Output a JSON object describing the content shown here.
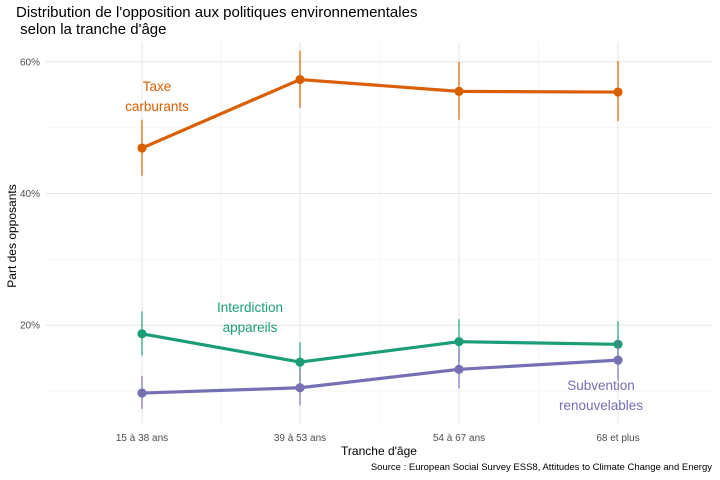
{
  "chart_data": {
    "type": "line",
    "title": "Distribution de l'opposition aux politiques environnementales\n selon la tranche d'âge",
    "xlabel": "Tranche d'âge",
    "ylabel": "Part des opposants",
    "caption": "Source : European Social Survey ESS8, Attitudes to Climate Change and Energy",
    "categories": [
      "15 à 38 ans",
      "39 à 53 ans",
      "54 à 67 ans",
      "68 et plus"
    ],
    "y_ticks": [
      0.2,
      0.4,
      0.6
    ],
    "y_tick_labels": [
      "20%",
      "40%",
      "60%"
    ],
    "ylim": [
      0.05,
      0.63
    ],
    "grid": true,
    "series": [
      {
        "name": "Taxe carburants",
        "label_lines": [
          "Taxe",
          "carburants"
        ],
        "color": "#D95F02",
        "values": [
          0.469,
          0.573,
          0.555,
          0.554
        ],
        "ci_low": [
          0.427,
          0.53,
          0.512,
          0.51
        ],
        "ci_high": [
          0.512,
          0.617,
          0.6,
          0.601
        ]
      },
      {
        "name": "Interdiction appareils",
        "label_lines": [
          "Interdiction",
          "appareils"
        ],
        "color": "#1B9E77",
        "values": [
          0.187,
          0.144,
          0.175,
          0.171
        ],
        "ci_low": [
          0.154,
          0.115,
          0.145,
          0.14
        ],
        "ci_high": [
          0.221,
          0.174,
          0.209,
          0.206
        ]
      },
      {
        "name": "Subvention renouvelables",
        "label_lines": [
          "Subvention",
          "renouvelables"
        ],
        "color": "#7570B3",
        "values": [
          0.097,
          0.105,
          0.133,
          0.147
        ],
        "ci_low": [
          0.073,
          0.078,
          0.104,
          0.117
        ],
        "ci_high": [
          0.123,
          0.133,
          0.163,
          0.179
        ]
      }
    ]
  }
}
